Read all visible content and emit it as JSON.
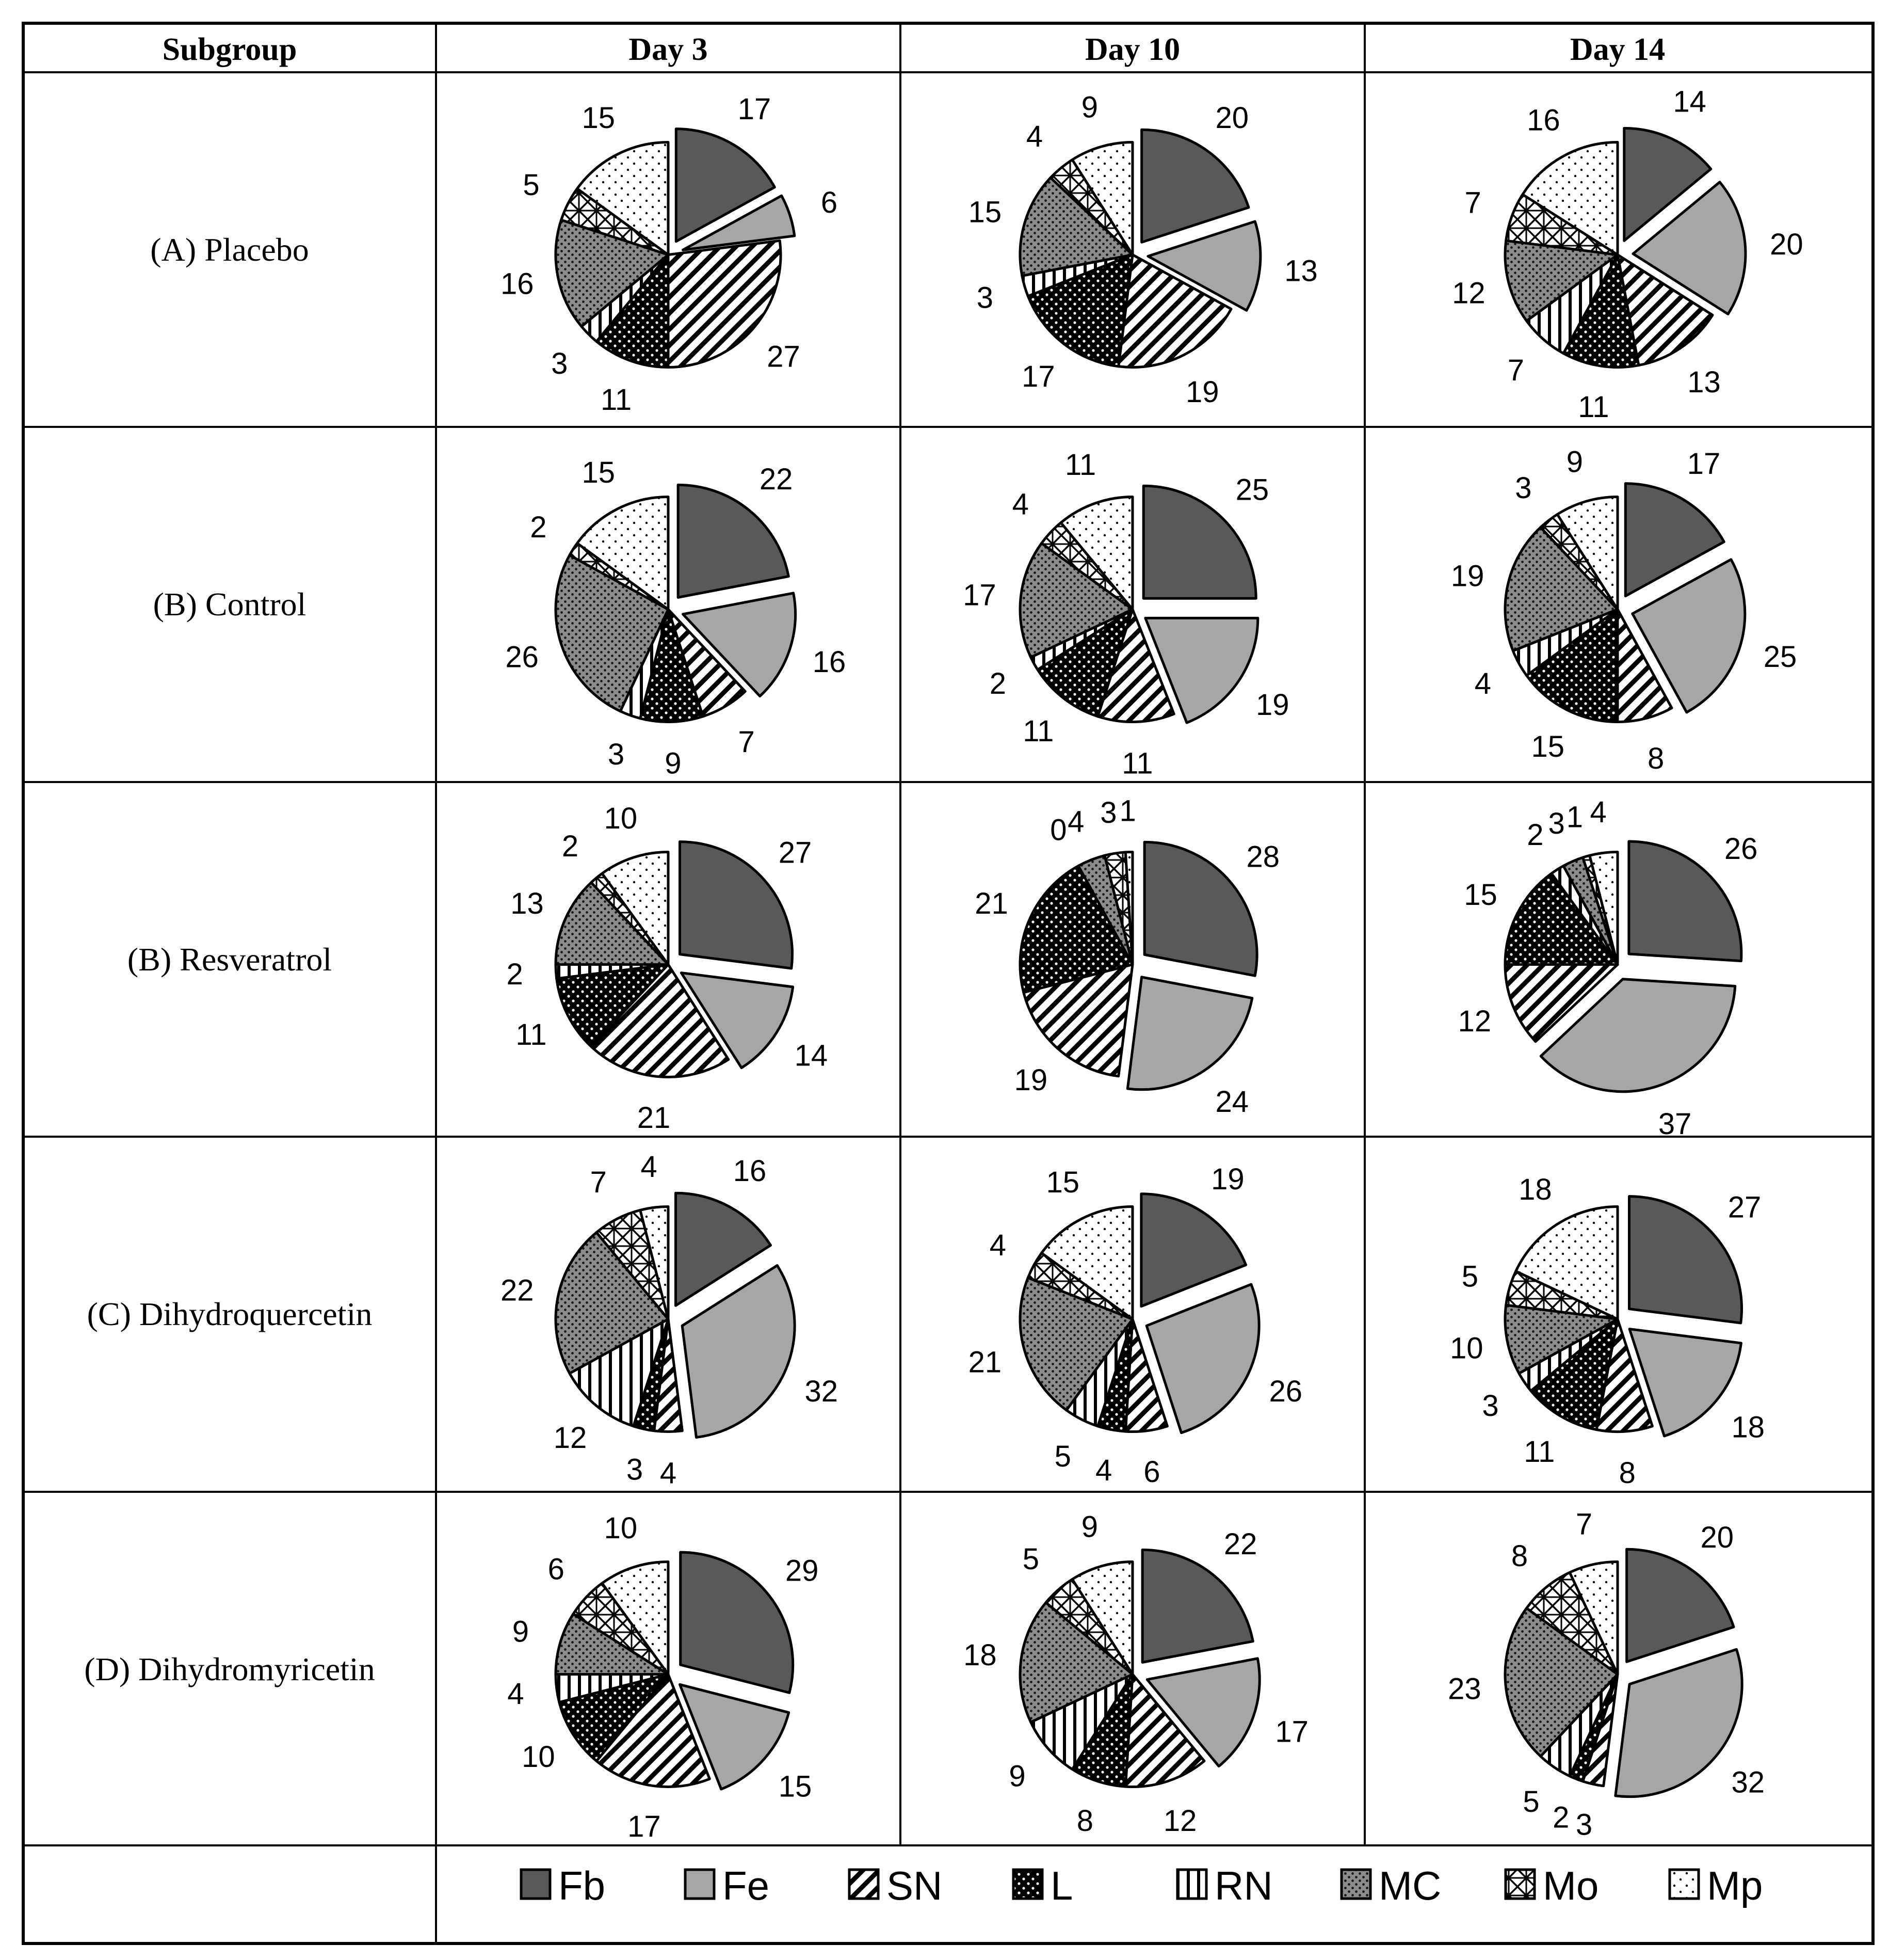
{
  "table": {
    "headers": [
      "Subgroup",
      "Day 3",
      "Day 10",
      "Day 14"
    ]
  },
  "series_styles": [
    {
      "name": "Fb",
      "color": "#595959",
      "pattern": "solid-dark"
    },
    {
      "name": "Fe",
      "color": "#a6a6a6",
      "pattern": "solid-light"
    },
    {
      "name": "SN",
      "color": "#000000",
      "pattern": "diagonal-stripes"
    },
    {
      "name": "L",
      "color": "#000000",
      "pattern": "dotted-black"
    },
    {
      "name": "RN",
      "color": "#000000",
      "pattern": "vertical-stripes"
    },
    {
      "name": "MC",
      "color": "#7f7f7f",
      "pattern": "dotted-grey"
    },
    {
      "name": "Mo",
      "color": "#000000",
      "pattern": "diagonal-cross"
    },
    {
      "name": "Mp",
      "color": "#000000",
      "pattern": "sparse-dots"
    }
  ],
  "chart_data": {
    "type": "pie",
    "categories": [
      "Fb",
      "Fe",
      "SN",
      "L",
      "RN",
      "MC",
      "Mo",
      "Mp"
    ],
    "columns": [
      "Day 3",
      "Day 10",
      "Day 14"
    ],
    "rows": [
      {
        "subgroup": "(A) Placebo",
        "pies": [
          {
            "day": "Day 3",
            "values": [
              17,
              6,
              27,
              11,
              3,
              16,
              5,
              15
            ]
          },
          {
            "day": "Day 10",
            "values": [
              20,
              13,
              19,
              17,
              3,
              15,
              4,
              9
            ]
          },
          {
            "day": "Day 14",
            "values": [
              14,
              20,
              13,
              11,
              7,
              12,
              7,
              16
            ]
          }
        ]
      },
      {
        "subgroup": "(B) Control",
        "pies": [
          {
            "day": "Day 3",
            "values": [
              22,
              16,
              7,
              9,
              3,
              26,
              2,
              15
            ]
          },
          {
            "day": "Day 10",
            "values": [
              25,
              19,
              11,
              11,
              2,
              17,
              4,
              11
            ]
          },
          {
            "day": "Day 14",
            "values": [
              17,
              25,
              8,
              15,
              4,
              19,
              3,
              9
            ]
          }
        ]
      },
      {
        "subgroup": "(B) Resveratrol",
        "pies": [
          {
            "day": "Day 3",
            "values": [
              27,
              14,
              21,
              11,
              2,
              13,
              2,
              10
            ]
          },
          {
            "day": "Day 10",
            "values": [
              28,
              24,
              19,
              21,
              0,
              4,
              3,
              1
            ]
          },
          {
            "day": "Day 14",
            "values": [
              26,
              37,
              12,
              15,
              2,
              3,
              1,
              4
            ]
          }
        ]
      },
      {
        "subgroup": "(C) Dihydroquercetin",
        "pies": [
          {
            "day": "Day 3",
            "values": [
              16,
              32,
              4,
              3,
              12,
              22,
              7,
              4
            ]
          },
          {
            "day": "Day 10",
            "values": [
              19,
              26,
              6,
              4,
              5,
              21,
              4,
              15
            ]
          },
          {
            "day": "Day 14",
            "values": [
              27,
              18,
              8,
              11,
              3,
              10,
              5,
              18
            ]
          }
        ]
      },
      {
        "subgroup": "(D) Dihydromyricetin",
        "pies": [
          {
            "day": "Day 3",
            "values": [
              29,
              15,
              17,
              10,
              4,
              9,
              6,
              10
            ]
          },
          {
            "day": "Day 10",
            "values": [
              22,
              17,
              12,
              8,
              9,
              18,
              5,
              9
            ]
          },
          {
            "day": "Day 14",
            "values": [
              20,
              32,
              3,
              2,
              5,
              23,
              8,
              7
            ]
          }
        ]
      }
    ],
    "exploded_slices": [
      "Fb",
      "Fe"
    ],
    "legend": [
      "Fb",
      "Fe",
      "SN",
      "L",
      "RN",
      "MC",
      "Mo",
      "Mp"
    ],
    "legend_position": "bottom"
  }
}
